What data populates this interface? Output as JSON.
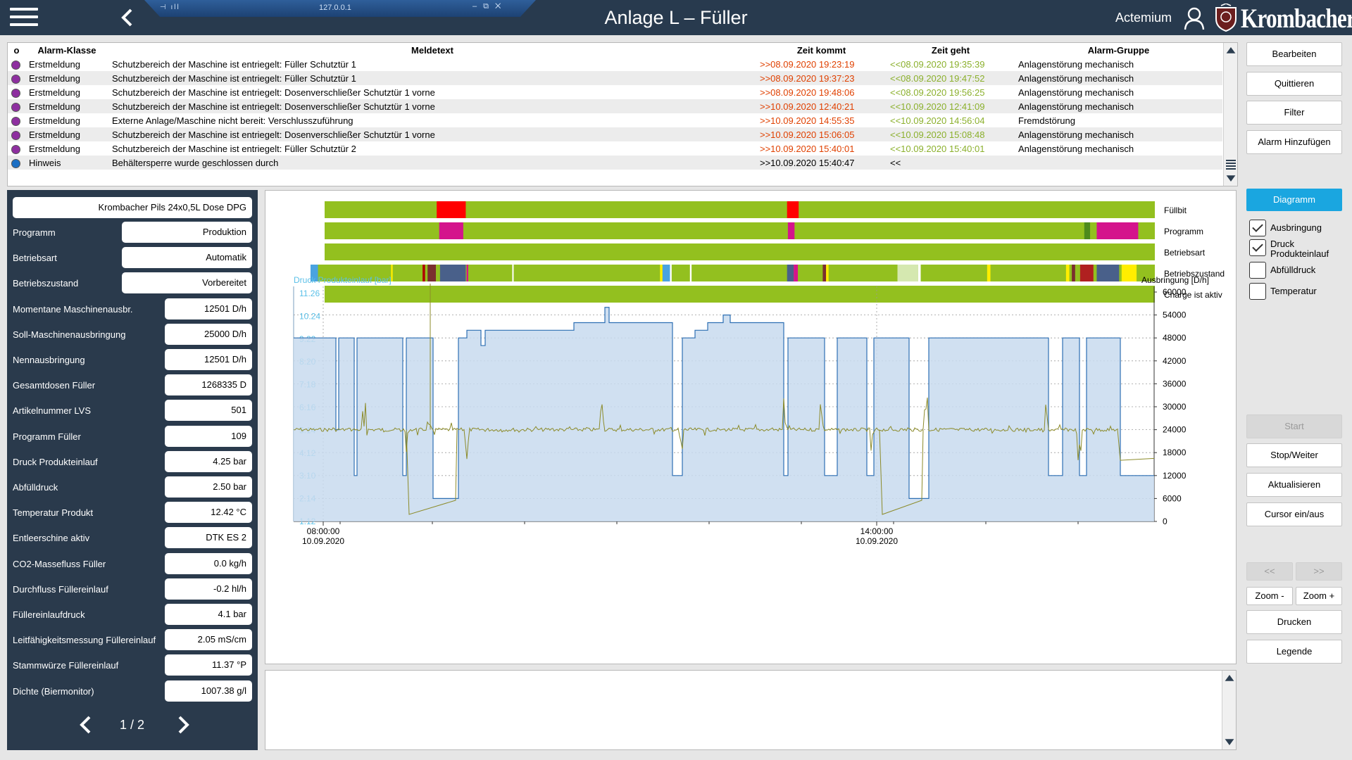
{
  "header": {
    "title": "Anlage L – Füller",
    "company": "Actemium",
    "brand": "Krombacher",
    "remote_host": "127.0.0.1"
  },
  "alarms": {
    "columns": [
      "o",
      "Alarm-Klasse",
      "Meldetext",
      "Zeit kommt",
      "Zeit geht",
      "Alarm-Gruppe"
    ],
    "rows": [
      {
        "color": "#8e2fa0",
        "class": "Erstmeldung",
        "text": "Schutzbereich der Maschine ist entriegelt: Füller Schutztür 1",
        "come": ">>08.09.2020 19:23:19",
        "go": "<<08.09.2020 19:35:39",
        "group": "Anlagenstörung mechanisch",
        "active": false
      },
      {
        "color": "#8e2fa0",
        "class": "Erstmeldung",
        "text": "Schutzbereich der Maschine ist entriegelt: Füller Schutztür 1",
        "come": ">>08.09.2020 19:37:23",
        "go": "<<08.09.2020 19:47:52",
        "group": "Anlagenstörung mechanisch",
        "active": false
      },
      {
        "color": "#8e2fa0",
        "class": "Erstmeldung",
        "text": "Schutzbereich der Maschine ist entriegelt: Dosenverschließer Schutztür 1 vorne",
        "come": ">>08.09.2020 19:48:06",
        "go": "<<08.09.2020 19:56:25",
        "group": "Anlagenstörung mechanisch",
        "active": false
      },
      {
        "color": "#8e2fa0",
        "class": "Erstmeldung",
        "text": "Schutzbereich der Maschine ist entriegelt: Dosenverschließer Schutztür 1 vorne",
        "come": ">>10.09.2020 12:40:21",
        "go": "<<10.09.2020 12:41:09",
        "group": "Anlagenstörung mechanisch",
        "active": false
      },
      {
        "color": "#8e2fa0",
        "class": "Erstmeldung",
        "text": "Externe Anlage/Maschine nicht bereit: Verschlusszuführung",
        "come": ">>10.09.2020 14:55:35",
        "go": "<<10.09.2020 14:56:04",
        "group": "Fremdstörung",
        "active": false
      },
      {
        "color": "#8e2fa0",
        "class": "Erstmeldung",
        "text": "Schutzbereich der Maschine ist entriegelt: Dosenverschließer Schutztür 1 vorne",
        "come": ">>10.09.2020 15:06:05",
        "go": "<<10.09.2020 15:08:48",
        "group": "Anlagenstörung mechanisch",
        "active": false
      },
      {
        "color": "#8e2fa0",
        "class": "Erstmeldung",
        "text": "Schutzbereich der Maschine ist entriegelt: Füller Schutztür 2",
        "come": ">>10.09.2020 15:40:01",
        "go": "<<10.09.2020 15:40:01",
        "group": "Anlagenstörung mechanisch",
        "active": false
      },
      {
        "color": "#1b6fc4",
        "class": "Hinweis",
        "text": "Behältersperre wurde geschlossen durch",
        "come": ">>10.09.2020 15:40:47",
        "go": "<<",
        "group": "",
        "active": true
      }
    ]
  },
  "right_buttons": {
    "bearbeiten": "Bearbeiten",
    "quittieren": "Quittieren",
    "filter": "Filter",
    "alarm_add": "Alarm Hinzufügen",
    "diagramm": "Diagramm",
    "start": "Start",
    "stop": "Stop/Weiter",
    "refresh": "Aktualisieren",
    "cursor": "Cursor ein/aus",
    "prev": "<<",
    "next": ">>",
    "zoom_out": "Zoom -",
    "zoom_in": "Zoom +",
    "print": "Drucken",
    "legend": "Legende"
  },
  "checkboxes": [
    {
      "label": "Ausbringung",
      "checked": true
    },
    {
      "label": "Druck Produkteinlauf",
      "checked": true
    },
    {
      "label": "Abfülldruck",
      "checked": false
    },
    {
      "label": "Temperatur",
      "checked": false
    }
  ],
  "info": {
    "product": "Krombacher Pils 24x0,5L Dose DPG",
    "params": [
      {
        "label": "Programm",
        "value": "Produktion",
        "wide": true
      },
      {
        "label": "Betriebsart",
        "value": "Automatik",
        "wide": true
      },
      {
        "label": "Betriebszustand",
        "value": "Vorbereitet",
        "wide": true
      },
      {
        "label": "Momentane Maschinenausbr.",
        "value": "12501 D/h"
      },
      {
        "label": "Soll-Maschinenausbringung",
        "value": "25000 D/h"
      },
      {
        "label": "Nennausbringung",
        "value": "12501 D/h"
      },
      {
        "label": "Gesamtdosen Füller",
        "value": "1268335 D"
      },
      {
        "label": "Artikelnummer LVS",
        "value": "501"
      },
      {
        "label": "Programm Füller",
        "value": "109"
      },
      {
        "label": "Druck Produkteinlauf",
        "value": "4.25 bar"
      },
      {
        "label": "Abfülldruck",
        "value": "2.50 bar"
      },
      {
        "label": "Temperatur Produkt",
        "value": "12.42 °C"
      },
      {
        "label": "Entleerschine aktiv",
        "value": "DTK ES 2"
      },
      {
        "label": "CO2-Massefluss Füller",
        "value": "0.0 kg/h"
      },
      {
        "label": "Durchfluss Füllereinlauf",
        "value": "-0.2 hl/h"
      },
      {
        "label": "Füllereinlaufdruck",
        "value": "4.1 bar"
      },
      {
        "label": "Leitfähigkeitsmessung Füllereinlauf",
        "value": "2.05 mS/cm"
      },
      {
        "label": "Stammwürze Füllereinlauf",
        "value": "11.37 °P"
      },
      {
        "label": "Dichte (Biermonitor)",
        "value": "1007.38 g/l"
      }
    ],
    "page": "1 / 2"
  },
  "chart_data": {
    "type": "area",
    "status_bars": {
      "labels": [
        "Füllbit",
        "Programm",
        "Betriebsart",
        "Betriebszustand",
        "Charge ist aktiv"
      ],
      "base_color": "#93c01f"
    },
    "y_left": {
      "label": "Druck Produkteinlauf  [bar]",
      "ticks": [
        "11.26",
        "10.24",
        "9.22",
        "8.20",
        "7.18",
        "6.16",
        "5.14",
        "4.12",
        "3.10",
        "2.14",
        "1.12"
      ],
      "color": "#5bc0e8"
    },
    "y_right": {
      "label": "Ausbringung [D/h]",
      "ticks": [
        "60000",
        "54000",
        "48000",
        "42000",
        "36000",
        "30000",
        "24000",
        "18000",
        "12000",
        "6000",
        "0"
      ],
      "range": [
        0,
        60000
      ]
    },
    "x_ticks": [
      {
        "time": "08:00:00",
        "date": "10.09.2020"
      },
      {
        "time": "14:00:00",
        "date": "10.09.2020"
      }
    ],
    "series": [
      {
        "name": "Ausbringung",
        "color": "#2d6fb3"
      },
      {
        "name": "Druck Produkteinlauf",
        "color": "#8c8b2a"
      }
    ]
  }
}
